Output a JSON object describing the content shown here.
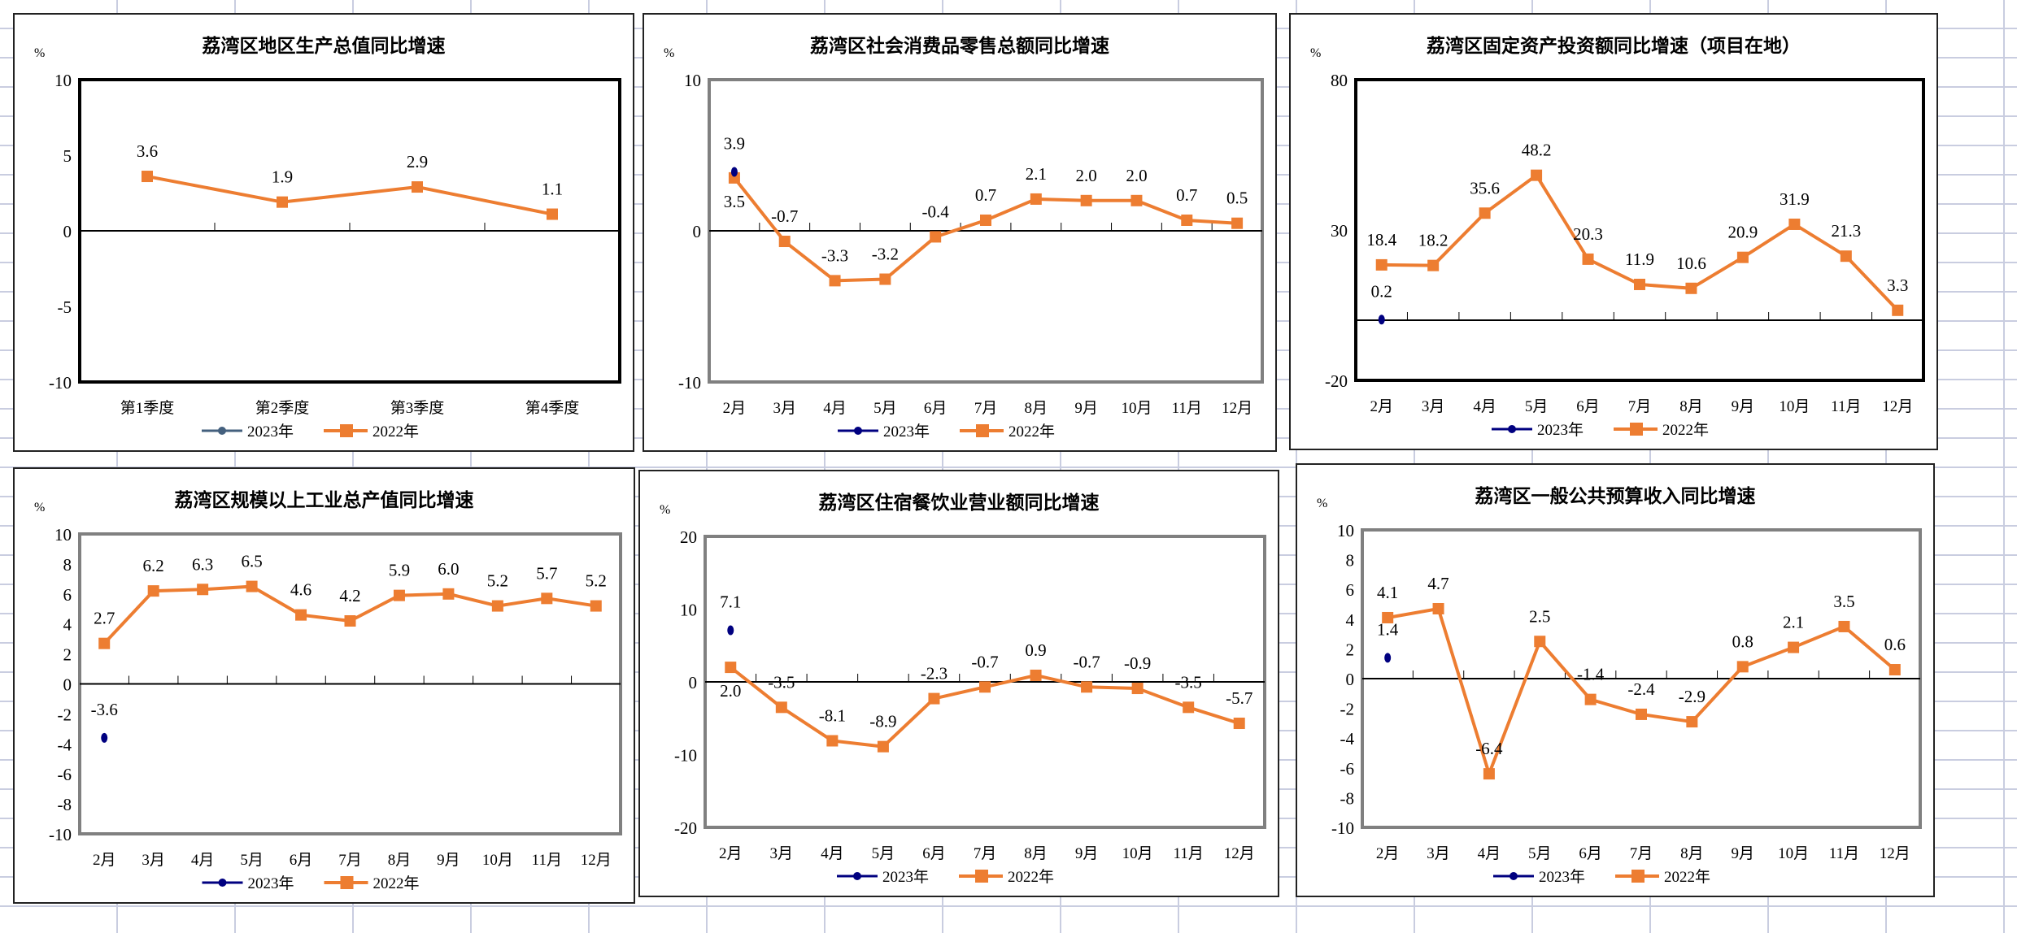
{
  "colors": {
    "series_2022": "#ED7D31",
    "series_2023": "#000080",
    "series_2023_chart1": "#44607E"
  },
  "chart_data": [
    {
      "type": "line",
      "title": "荔湾区地区生产总值同比增速",
      "ylabel": "%",
      "ylim": [
        -10,
        10
      ],
      "yticks": [
        10,
        5,
        0,
        -5,
        -10
      ],
      "categories": [
        "第1季度",
        "第2季度",
        "第3季度",
        "第4季度"
      ],
      "series": [
        {
          "name": "2023年",
          "values": [
            null,
            null,
            null,
            null
          ]
        },
        {
          "name": "2022年",
          "values": [
            3.6,
            1.9,
            2.9,
            1.1
          ]
        }
      ]
    },
    {
      "type": "line",
      "title": "荔湾区社会消费品零售总额同比增速",
      "ylabel": "%",
      "ylim": [
        -10,
        10
      ],
      "yticks": [
        10,
        0,
        -10
      ],
      "categories": [
        "2月",
        "3月",
        "4月",
        "5月",
        "6月",
        "7月",
        "8月",
        "9月",
        "10月",
        "11月",
        "12月"
      ],
      "series": [
        {
          "name": "2023年",
          "values": [
            3.9,
            null,
            null,
            null,
            null,
            null,
            null,
            null,
            null,
            null,
            null
          ]
        },
        {
          "name": "2022年",
          "values": [
            3.5,
            -0.7,
            -3.3,
            -3.2,
            -0.4,
            0.7,
            2.1,
            2.0,
            2.0,
            0.7,
            0.5
          ]
        }
      ]
    },
    {
      "type": "line",
      "title": "荔湾区固定资产投资额同比增速（项目在地）",
      "ylabel": "%",
      "ylim": [
        -20,
        80
      ],
      "yticks": [
        80,
        30,
        -20
      ],
      "categories": [
        "2月",
        "3月",
        "4月",
        "5月",
        "6月",
        "7月",
        "8月",
        "9月",
        "10月",
        "11月",
        "12月"
      ],
      "series": [
        {
          "name": "2023年",
          "values": [
            0.2,
            null,
            null,
            null,
            null,
            null,
            null,
            null,
            null,
            null,
            null
          ]
        },
        {
          "name": "2022年",
          "values": [
            18.4,
            18.2,
            35.6,
            48.2,
            20.3,
            11.9,
            10.6,
            20.9,
            31.9,
            21.3,
            3.3
          ]
        }
      ]
    },
    {
      "type": "line",
      "title": "荔湾区规模以上工业总产值同比增速",
      "ylabel": "%",
      "ylim": [
        -10,
        10
      ],
      "yticks": [
        10,
        8,
        6,
        4,
        2,
        0,
        -2,
        -4,
        -6,
        -8,
        -10
      ],
      "categories": [
        "2月",
        "3月",
        "4月",
        "5月",
        "6月",
        "7月",
        "8月",
        "9月",
        "10月",
        "11月",
        "12月"
      ],
      "series": [
        {
          "name": "2023年",
          "values": [
            -3.6,
            null,
            null,
            null,
            null,
            null,
            null,
            null,
            null,
            null,
            null
          ]
        },
        {
          "name": "2022年",
          "values": [
            2.7,
            6.2,
            6.3,
            6.5,
            4.6,
            4.2,
            5.9,
            6.0,
            5.2,
            5.7,
            5.2
          ]
        }
      ]
    },
    {
      "type": "line",
      "title": "荔湾区住宿餐饮业营业额同比增速",
      "ylabel": "%",
      "ylim": [
        -20,
        20
      ],
      "yticks": [
        20,
        10,
        0,
        -10,
        -20
      ],
      "categories": [
        "2月",
        "3月",
        "4月",
        "5月",
        "6月",
        "7月",
        "8月",
        "9月",
        "10月",
        "11月",
        "12月"
      ],
      "series": [
        {
          "name": "2023年",
          "values": [
            7.1,
            null,
            null,
            null,
            null,
            null,
            null,
            null,
            null,
            null,
            null
          ]
        },
        {
          "name": "2022年",
          "values": [
            2.0,
            -3.5,
            -8.1,
            -8.9,
            -2.3,
            -0.7,
            0.9,
            -0.7,
            -0.9,
            -3.5,
            -5.7
          ]
        }
      ]
    },
    {
      "type": "line",
      "title": "荔湾区一般公共预算收入同比增速",
      "ylabel": "%",
      "ylim": [
        -10,
        10
      ],
      "yticks": [
        10,
        8,
        6,
        4,
        2,
        0,
        -2,
        -4,
        -6,
        -8,
        -10
      ],
      "categories": [
        "2月",
        "3月",
        "4月",
        "5月",
        "6月",
        "7月",
        "8月",
        "9月",
        "10月",
        "11月",
        "12月"
      ],
      "series": [
        {
          "name": "2023年",
          "values": [
            1.4,
            null,
            null,
            null,
            null,
            null,
            null,
            null,
            null,
            null,
            null
          ]
        },
        {
          "name": "2022年",
          "values": [
            4.1,
            4.7,
            -6.4,
            2.5,
            -1.4,
            -2.4,
            -2.9,
            0.8,
            2.1,
            3.5,
            0.6
          ]
        }
      ]
    }
  ]
}
